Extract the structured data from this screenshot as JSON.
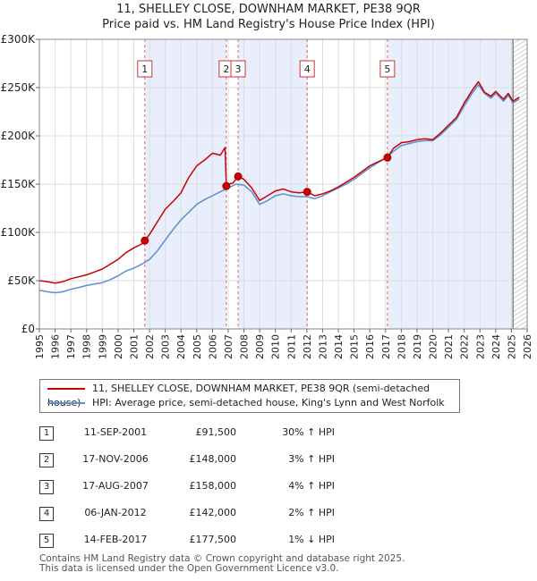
{
  "title": {
    "line1": "11, SHELLEY CLOSE, DOWNHAM MARKET, PE38 9QR",
    "line2": "Price paid vs. HM Land Registry's House Price Index (HPI)"
  },
  "legend": {
    "series1": "11, SHELLEY CLOSE, DOWNHAM MARKET, PE38 9QR (semi-detached house)",
    "series2": "HPI: Average price, semi-detached house, King's Lynn and West Norfolk"
  },
  "colors": {
    "price": "#cc0000",
    "hpi": "#5b8fd0",
    "shade": "#e8eefb",
    "marker_line": "#e06666"
  },
  "sales": [
    {
      "n": "1",
      "date": "11-SEP-2001",
      "price": "£91,500",
      "hpi": "30% ↑ HPI"
    },
    {
      "n": "2",
      "date": "17-NOV-2006",
      "price": "£148,000",
      "hpi": "3% ↑ HPI"
    },
    {
      "n": "3",
      "date": "17-AUG-2007",
      "price": "£158,000",
      "hpi": "4% ↑ HPI"
    },
    {
      "n": "4",
      "date": "06-JAN-2012",
      "price": "£142,000",
      "hpi": "2% ↑ HPI"
    },
    {
      "n": "5",
      "date": "14-FEB-2017",
      "price": "£177,500",
      "hpi": "1% ↓ HPI"
    }
  ],
  "footer": {
    "line1": "Contains HM Land Registry data © Crown copyright and database right 2025.",
    "line2": "This data is licensed under the Open Government Licence v3.0."
  },
  "chart_data": {
    "type": "line",
    "xlim": [
      1995,
      2026
    ],
    "ylim": [
      0,
      300000
    ],
    "x_ticks": [
      1995,
      1996,
      1997,
      1998,
      1999,
      2000,
      2001,
      2002,
      2003,
      2004,
      2005,
      2006,
      2007,
      2008,
      2009,
      2010,
      2011,
      2012,
      2013,
      2014,
      2015,
      2016,
      2017,
      2018,
      2019,
      2020,
      2021,
      2022,
      2023,
      2024,
      2025,
      2026
    ],
    "y_ticks": [
      {
        "v": 0,
        "label": "£0"
      },
      {
        "v": 50000,
        "label": "£50K"
      },
      {
        "v": 100000,
        "label": "£100K"
      },
      {
        "v": 150000,
        "label": "£150K"
      },
      {
        "v": 200000,
        "label": "£200K"
      },
      {
        "v": 250000,
        "label": "£250K"
      },
      {
        "v": 300000,
        "label": "£300K"
      }
    ],
    "grid": true,
    "forecast_start": 2025.1,
    "shaded_ranges": [
      [
        2001.7,
        2006.88
      ],
      [
        2007.63,
        2012.02
      ],
      [
        2017.12,
        2025.1
      ]
    ],
    "markers": [
      {
        "label": "1",
        "x": 2001.7,
        "y": 91500
      },
      {
        "label": "2",
        "x": 2006.88,
        "y": 148000
      },
      {
        "label": "3",
        "x": 2007.63,
        "y": 158000
      },
      {
        "label": "4",
        "x": 2012.02,
        "y": 142000
      },
      {
        "label": "5",
        "x": 2017.12,
        "y": 177500
      }
    ],
    "series": [
      {
        "name": "11, SHELLEY CLOSE, DOWNHAM MARKET, PE38 9QR (semi-detached house)",
        "x": [
          1995,
          1995.5,
          1996,
          1996.5,
          1997,
          1997.5,
          1998,
          1998.5,
          1999,
          1999.5,
          2000,
          2000.5,
          2001,
          2001.5,
          2001.7,
          2002,
          2002.5,
          2003,
          2003.5,
          2004,
          2004.5,
          2005,
          2005.5,
          2006,
          2006.5,
          2006.8,
          2006.88,
          2007,
          2007.3,
          2007.63,
          2008,
          2008.5,
          2009,
          2009.5,
          2010,
          2010.5,
          2011,
          2011.5,
          2012.02,
          2012.5,
          2013,
          2013.5,
          2014,
          2014.5,
          2015,
          2015.5,
          2016,
          2016.5,
          2017.12,
          2017.5,
          2018,
          2018.5,
          2019,
          2019.5,
          2020,
          2020.5,
          2021,
          2021.5,
          2022,
          2022.5,
          2022.9,
          2023.3,
          2023.7,
          2024,
          2024.5,
          2024.8,
          2025.1,
          2025.5
        ],
        "y": [
          50000,
          49000,
          47500,
          49000,
          52000,
          54000,
          56000,
          59000,
          62000,
          67000,
          72000,
          79000,
          84000,
          88000,
          91500,
          98000,
          111000,
          124000,
          132000,
          141000,
          157000,
          169000,
          175000,
          182000,
          180000,
          188000,
          148000,
          150000,
          151000,
          158000,
          155000,
          146000,
          133000,
          138000,
          143000,
          145000,
          142000,
          141000,
          142000,
          138000,
          140000,
          143000,
          147000,
          152000,
          157000,
          163000,
          169000,
          173000,
          177500,
          187000,
          193000,
          194000,
          196000,
          197000,
          196000,
          203000,
          211000,
          219000,
          234000,
          247000,
          256000,
          245000,
          241000,
          246000,
          238000,
          244000,
          236000,
          240000
        ]
      },
      {
        "name": "HPI: Average price, semi-detached house, King's Lynn and West Norfolk",
        "x": [
          1995,
          1995.5,
          1996,
          1996.5,
          1997,
          1997.5,
          1998,
          1998.5,
          1999,
          1999.5,
          2000,
          2000.5,
          2001,
          2001.5,
          2002,
          2002.5,
          2003,
          2003.5,
          2004,
          2004.5,
          2005,
          2005.5,
          2006,
          2006.5,
          2007,
          2007.5,
          2008,
          2008.5,
          2009,
          2009.5,
          2010,
          2010.5,
          2011,
          2011.5,
          2012,
          2012.5,
          2013,
          2013.5,
          2014,
          2014.5,
          2015,
          2015.5,
          2016,
          2016.5,
          2017,
          2017.5,
          2018,
          2018.5,
          2019,
          2019.5,
          2020,
          2020.5,
          2021,
          2021.5,
          2022,
          2022.5,
          2022.9,
          2023.3,
          2023.7,
          2024,
          2024.5,
          2024.8,
          2025.1,
          2025.5
        ],
        "y": [
          40000,
          38500,
          37500,
          38500,
          41000,
          43000,
          45000,
          46500,
          48000,
          51000,
          55000,
          60000,
          63000,
          67000,
          72000,
          81000,
          92000,
          103000,
          113000,
          121000,
          129000,
          134000,
          138000,
          142000,
          146000,
          150000,
          149000,
          142000,
          129000,
          133000,
          138000,
          140000,
          138000,
          137000,
          137000,
          135000,
          138000,
          142000,
          146000,
          150000,
          155000,
          161000,
          167000,
          172000,
          177000,
          184000,
          190000,
          192000,
          194000,
          195000,
          195000,
          201000,
          209000,
          217000,
          231000,
          244000,
          253000,
          244000,
          239000,
          244000,
          236000,
          242000,
          234000,
          238000
        ]
      }
    ]
  }
}
